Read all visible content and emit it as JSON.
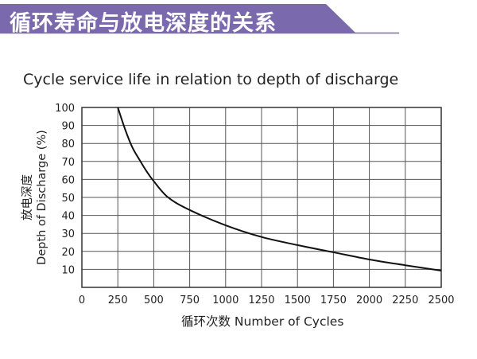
{
  "header": {
    "title": "循环寿命与放电深度的关系",
    "accent_color": "#7a6aad"
  },
  "chart_data": {
    "type": "line",
    "title": "Cycle service life in relation to depth of discharge",
    "xlabel": "循环次数 Number of Cycles",
    "ylabel_cn": "放电深度",
    "ylabel": "Depth of Discharge (%)",
    "xlim": [
      0,
      2500
    ],
    "ylim": [
      0,
      100
    ],
    "xticks": [
      0,
      250,
      500,
      750,
      1000,
      1250,
      1500,
      1750,
      2000,
      2250,
      2500
    ],
    "yticks": [
      10,
      20,
      30,
      40,
      50,
      60,
      70,
      80,
      90,
      100
    ],
    "grid": true,
    "series": [
      {
        "x": [
          250,
          300,
          350,
          400,
          450,
          500,
          600,
          750,
          1000,
          1250,
          1500,
          1750,
          2000,
          2250,
          2500
        ],
        "y": [
          100,
          88,
          78,
          71,
          64.5,
          59,
          50,
          43,
          34.5,
          28,
          23.5,
          19.5,
          15.5,
          12.3,
          9.3
        ],
        "color": "#111111"
      }
    ]
  }
}
